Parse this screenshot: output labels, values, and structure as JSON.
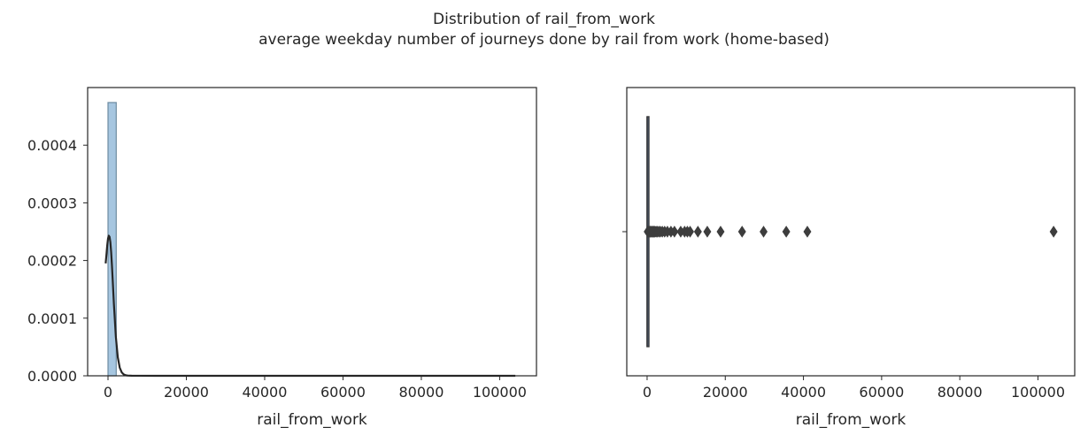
{
  "figure": {
    "title_line1": "Distribution of rail_from_work",
    "title_line2": "average weekday number of journeys done by rail from work (home-based)"
  },
  "chart_data": [
    {
      "type": "histogram",
      "xlabel": "rail_from_work",
      "ylabel": "",
      "xlim": [
        -5200,
        109400
      ],
      "ylim": [
        0,
        0.0005
      ],
      "xticks": [
        0,
        20000,
        40000,
        60000,
        80000,
        100000
      ],
      "xtick_labels": [
        "0",
        "20000",
        "40000",
        "60000",
        "80000",
        "100000"
      ],
      "yticks": [
        0.0,
        0.0001,
        0.0002,
        0.0003,
        0.0004
      ],
      "ytick_labels": [
        "0.0000",
        "0.0001",
        "0.0002",
        "0.0003",
        "0.0004"
      ],
      "bins": [
        {
          "x0": 0,
          "x1": 2100,
          "density": 0.000474
        }
      ],
      "bar_color": "#a6c6e0",
      "bar_edge_color": "#6d8ba1",
      "kde": {
        "color": "#262626",
        "x": [
          -600,
          -400,
          -200,
          0,
          200,
          400,
          600,
          800,
          1000,
          1200,
          1500,
          2000,
          2500,
          3000,
          3500,
          4000,
          4500,
          5000,
          6000,
          8000,
          12000,
          20000,
          40000,
          60000,
          80000,
          104000
        ],
        "y": [
          0.000195,
          0.00021,
          0.000226,
          0.000238,
          0.000243,
          0.000241,
          0.000232,
          0.000215,
          0.000192,
          0.000166,
          0.000125,
          6.8e-05,
          3.2e-05,
          1.4e-05,
          6e-06,
          2.5e-06,
          1e-06,
          5e-07,
          2e-07,
          1e-07,
          5e-08,
          3e-08,
          2e-08,
          2e-08,
          1e-08,
          1e-08
        ]
      }
    },
    {
      "type": "boxplot",
      "xlabel": "rail_from_work",
      "xlim": [
        -5200,
        109400
      ],
      "xticks": [
        0,
        20000,
        40000,
        60000,
        80000,
        100000
      ],
      "xtick_labels": [
        "0",
        "20000",
        "40000",
        "60000",
        "80000",
        "100000"
      ],
      "box": {
        "q1": 0,
        "median": 10,
        "q3": 50,
        "whisker_low": 0,
        "whisker_high": 120
      },
      "color": "#3d3d3d",
      "outliers": [
        150,
        250,
        400,
        550,
        700,
        850,
        1000,
        1200,
        1400,
        1600,
        1800,
        2000,
        2300,
        2600,
        3000,
        3400,
        3900,
        4500,
        5200,
        6100,
        7000,
        8600,
        9600,
        10300,
        11000,
        13000,
        15400,
        18800,
        24300,
        29800,
        35600,
        41000,
        104000
      ]
    }
  ]
}
